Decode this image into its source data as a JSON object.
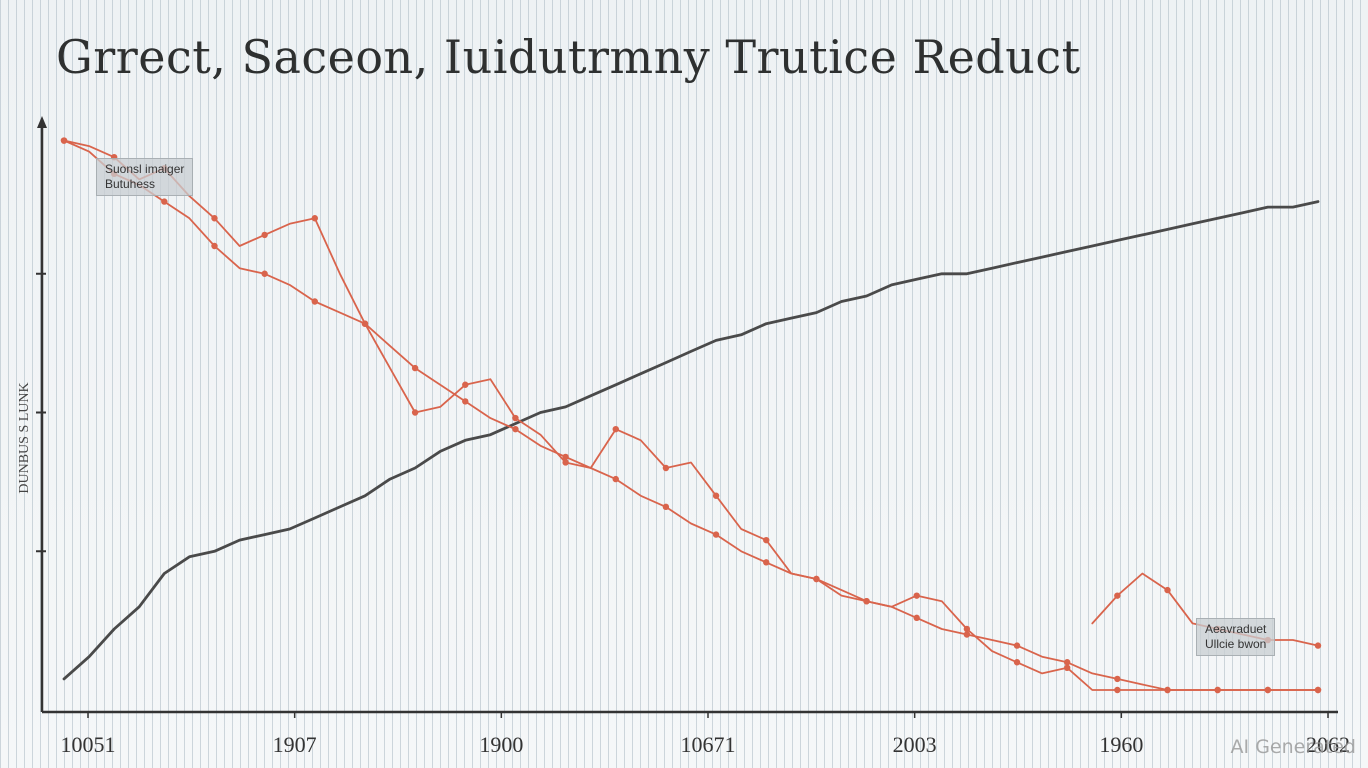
{
  "chart_data": {
    "type": "line",
    "title": "Grrect, Saceon, Iuidutrmny Trutice Reduct",
    "xlabel": "",
    "ylabel": "DUNBUS S LUNK",
    "x_tick_labels": [
      "10051",
      "1907",
      "1900",
      "10671",
      "2003",
      "1960",
      "2062"
    ],
    "x": [
      0,
      1,
      2,
      3,
      4,
      5,
      6,
      7,
      8,
      9,
      10,
      11,
      12,
      13,
      14,
      15,
      16,
      17,
      18,
      19,
      20,
      21,
      22,
      23,
      24,
      25,
      26,
      27,
      28,
      29,
      30,
      31,
      32,
      33,
      34,
      35,
      36,
      37,
      38,
      39,
      40,
      41,
      42,
      43,
      44,
      45,
      46,
      47,
      48,
      49,
      50
    ],
    "xlim": [
      0,
      50
    ],
    "ylim": [
      0,
      100
    ],
    "grid": false,
    "series": [
      {
        "color": "#4a4a4a",
        "values": [
          2,
          6,
          11,
          15,
          21,
          24,
          25,
          27,
          28,
          29,
          31,
          33,
          35,
          38,
          40,
          43,
          45,
          46,
          48,
          50,
          51,
          53,
          55,
          57,
          59,
          61,
          63,
          64,
          66,
          67,
          68,
          70,
          71,
          73,
          74,
          75,
          75,
          76,
          77,
          78,
          79,
          80,
          81,
          82,
          83,
          84,
          85,
          86,
          87,
          87,
          88
        ]
      },
      {
        "color": "#d9644c",
        "values": [
          99,
          97,
          93,
          91,
          88,
          85,
          80,
          76,
          75,
          73,
          70,
          68,
          66,
          62,
          58,
          55,
          52,
          49,
          47,
          44,
          42,
          40,
          38,
          35,
          33,
          30,
          28,
          25,
          23,
          21,
          20,
          18,
          16,
          15,
          13,
          11,
          10,
          9,
          8,
          6,
          5,
          3,
          2,
          1,
          0,
          0,
          0,
          0,
          0,
          0,
          0
        ]
      },
      {
        "color": "#d9644c",
        "values": [
          99,
          98,
          96,
          92,
          94,
          89,
          85,
          80,
          82,
          84,
          85,
          75,
          66,
          58,
          50,
          51,
          55,
          56,
          49,
          46,
          41,
          40,
          47,
          45,
          40,
          41,
          35,
          29,
          27,
          21,
          20,
          17,
          16,
          15,
          17,
          16,
          11,
          7,
          5,
          3,
          4,
          0,
          0,
          0,
          0,
          0,
          0,
          0,
          0,
          0,
          0
        ]
      },
      {
        "color": "#d9644c",
        "values": [
          null,
          null,
          null,
          null,
          null,
          null,
          null,
          null,
          null,
          null,
          null,
          null,
          null,
          null,
          null,
          null,
          null,
          null,
          null,
          null,
          null,
          null,
          null,
          null,
          null,
          null,
          null,
          null,
          null,
          null,
          null,
          null,
          null,
          null,
          null,
          null,
          null,
          null,
          null,
          null,
          null,
          12,
          17,
          21,
          18,
          12,
          11,
          10,
          9,
          9,
          8
        ]
      }
    ],
    "markers": true,
    "legend": [
      {
        "position": "top-left",
        "lines": [
          "Suonsl imaiger",
          "Butuhess"
        ]
      },
      {
        "position": "bottom-right",
        "lines": [
          "Aeavraduet",
          "Ullcie  bwon"
        ]
      }
    ]
  },
  "watermark": "AI Generated"
}
